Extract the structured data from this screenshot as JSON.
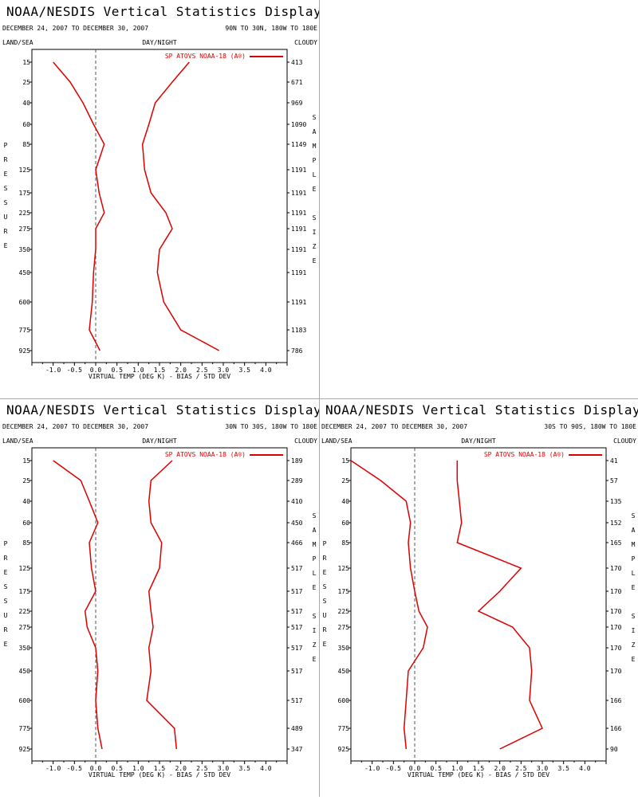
{
  "common": {
    "title": "NOAA/NESDIS Vertical Statistics Display",
    "date_range": "DECEMBER 24, 2007 TO DECEMBER 30, 2007",
    "left_header": "LAND/SEA",
    "mid_header": "DAY/NIGHT",
    "right_header": "CLOUDY",
    "xlabel": "VIRTUAL TEMP (DEG K) - BIAS / STD DEV",
    "ylabel": "PRESSURE",
    "sample_label": "SAMPLE SIZE",
    "legend": "SP ATOVS NOAA-18 (A®)",
    "line_color": "#dd0000"
  },
  "chart_data": [
    {
      "type": "line",
      "region": "90N TO 30N, 180W TO 180E",
      "pressure_levels": [
        15,
        25,
        40,
        60,
        85,
        125,
        175,
        225,
        275,
        350,
        450,
        600,
        775,
        925
      ],
      "xlim": [
        -1.5,
        4.5
      ],
      "xticks": [
        -1.0,
        -0.5,
        0.0,
        0.5,
        1.0,
        1.5,
        2.0,
        2.5,
        3.0,
        3.5,
        4.0
      ],
      "sample_size": [
        "413",
        "671",
        "969",
        "1090",
        "1149",
        "1191",
        "1191",
        "1191",
        "1191",
        "1191",
        "1191",
        "1191",
        "1183",
        "786"
      ],
      "series": [
        {
          "values": [
            -1.0,
            -0.6,
            -0.3,
            -0.05,
            0.2,
            0.0,
            0.08,
            0.2,
            0.0,
            0.0,
            -0.05,
            -0.08,
            -0.15,
            0.1
          ]
        },
        {
          "values": [
            2.2,
            1.8,
            1.4,
            1.25,
            1.1,
            1.15,
            1.3,
            1.65,
            1.8,
            1.5,
            1.45,
            1.6,
            2.0,
            2.9
          ]
        }
      ]
    },
    {
      "type": "line",
      "region": "30N TO 30S, 180W TO 180E",
      "pressure_levels": [
        15,
        25,
        40,
        60,
        85,
        125,
        175,
        225,
        275,
        350,
        450,
        600,
        775,
        925
      ],
      "xlim": [
        -1.5,
        4.5
      ],
      "xticks": [
        -1.0,
        -0.5,
        0.0,
        0.5,
        1.0,
        1.5,
        2.0,
        2.5,
        3.0,
        3.5,
        4.0
      ],
      "sample_size": [
        "189",
        "289",
        "410",
        "450",
        "466",
        "517",
        "517",
        "517",
        "517",
        "517",
        "517",
        "517",
        "489",
        "347"
      ],
      "series": [
        {
          "values": [
            -1.0,
            -0.35,
            -0.15,
            0.05,
            -0.15,
            -0.1,
            0.0,
            -0.25,
            -0.2,
            0.0,
            0.05,
            0.0,
            0.05,
            0.15
          ]
        },
        {
          "values": [
            1.8,
            1.3,
            1.25,
            1.3,
            1.55,
            1.5,
            1.25,
            1.3,
            1.35,
            1.25,
            1.3,
            1.2,
            1.85,
            1.9
          ]
        }
      ]
    },
    {
      "type": "line",
      "region": "30S TO 90S, 180W TO 180E",
      "pressure_levels": [
        15,
        25,
        40,
        60,
        85,
        125,
        175,
        225,
        275,
        350,
        450,
        600,
        775,
        925
      ],
      "xlim": [
        -1.5,
        4.5
      ],
      "xticks": [
        -1.0,
        -0.5,
        0.0,
        0.5,
        1.0,
        1.5,
        2.0,
        2.5,
        3.0,
        3.5,
        4.0
      ],
      "sample_size": [
        "41",
        "57",
        "135",
        "152",
        "165",
        "170",
        "170",
        "170",
        "170",
        "170",
        "170",
        "166",
        "166",
        "90"
      ],
      "series": [
        {
          "values": [
            -1.5,
            -0.8,
            -0.2,
            -0.1,
            -0.15,
            -0.1,
            0.0,
            0.1,
            0.3,
            0.2,
            -0.15,
            -0.2,
            -0.25,
            -0.2
          ]
        },
        {
          "values": [
            1.0,
            1.0,
            1.05,
            1.1,
            1.0,
            2.5,
            2.0,
            1.5,
            2.3,
            2.7,
            2.75,
            2.7,
            3.0,
            2.0
          ]
        }
      ]
    }
  ]
}
